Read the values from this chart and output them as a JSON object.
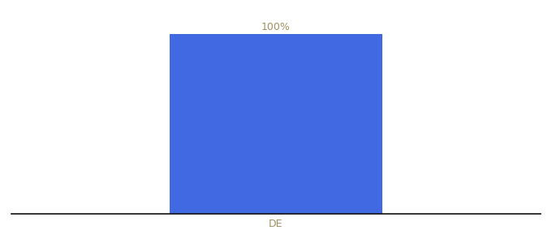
{
  "categories": [
    "DE"
  ],
  "values": [
    100
  ],
  "bar_colors": [
    "#4169e1"
  ],
  "value_labels": [
    "100%"
  ],
  "bar_width": 0.6,
  "ylim": [
    0,
    108
  ],
  "xlim": [
    -0.75,
    0.75
  ],
  "label_color": "#a09060",
  "label_fontsize": 9,
  "tick_color": "#a09060",
  "tick_fontsize": 9,
  "background_color": "#ffffff",
  "spine_color": "#111111"
}
